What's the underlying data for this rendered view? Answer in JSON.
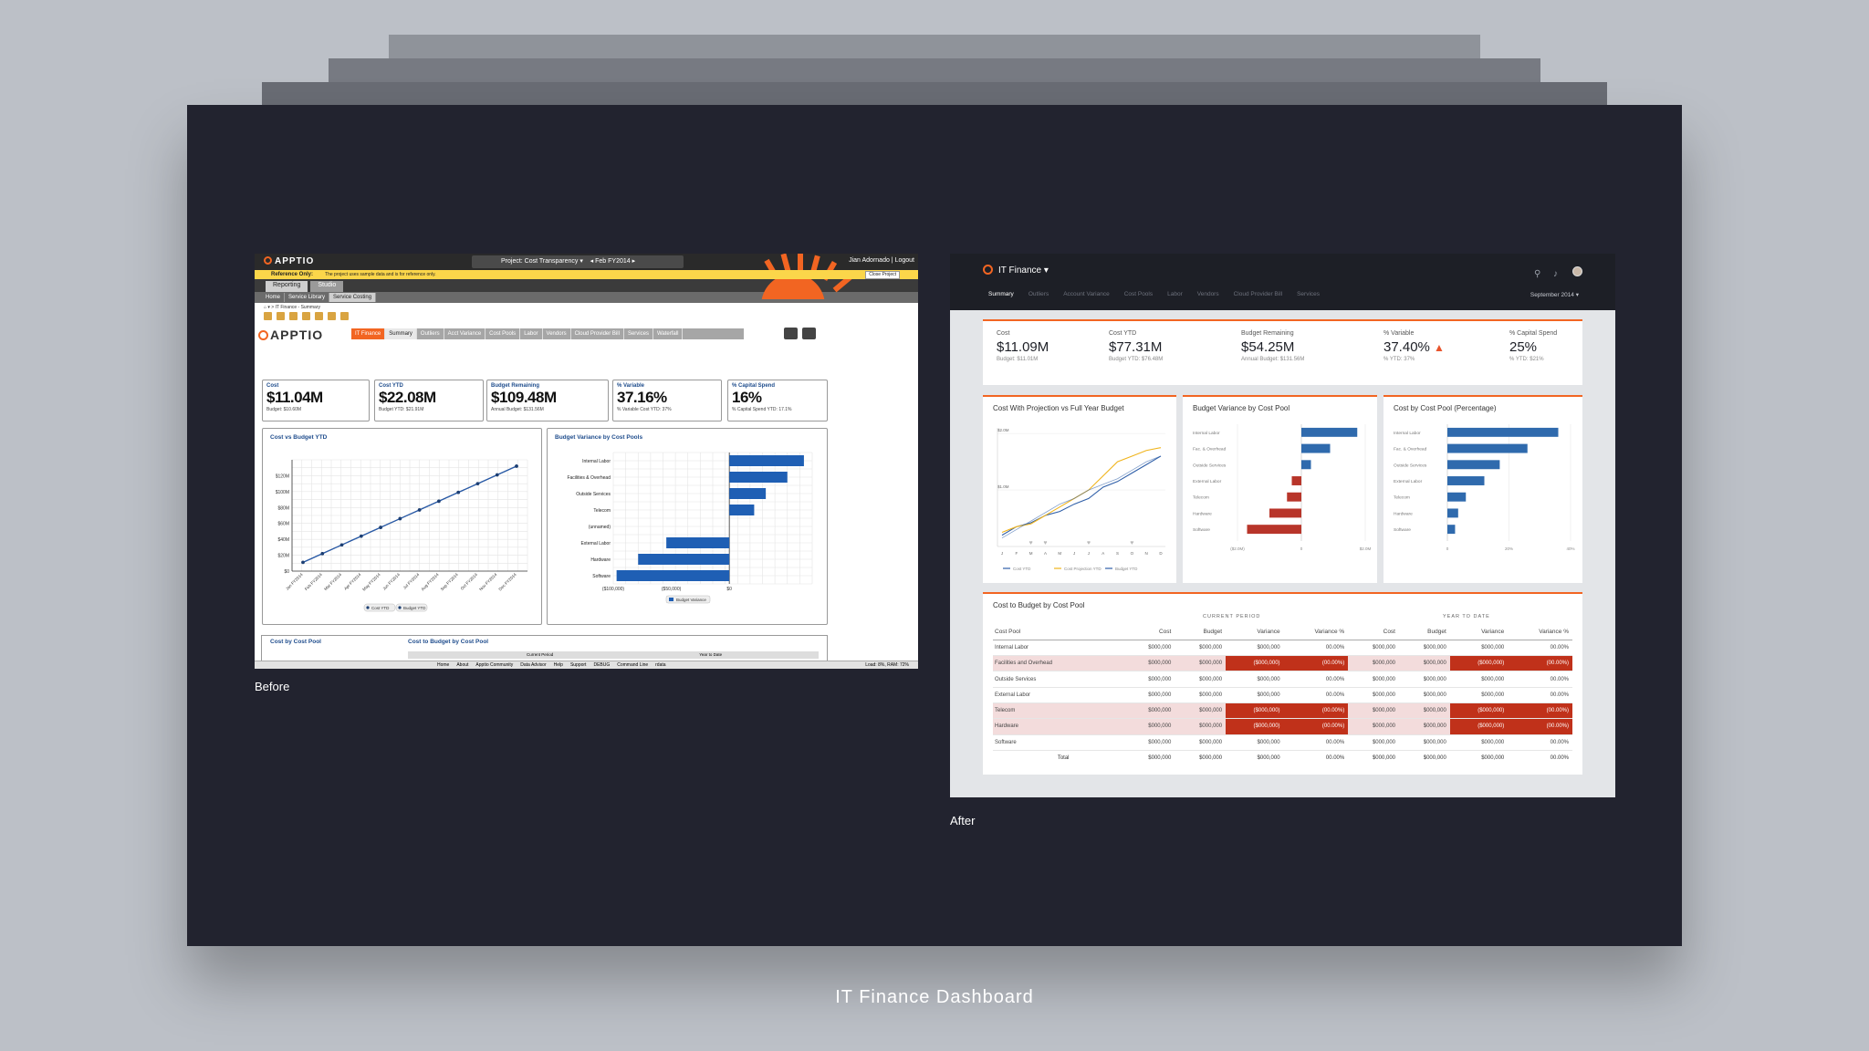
{
  "page": {
    "title": "IT Finance Dashboard",
    "before_label": "Before",
    "after_label": "After"
  },
  "before": {
    "brand": "APPTIO",
    "project": "Project: Cost Transparency",
    "period": "Feb FY2014",
    "user": "Jian Adornado",
    "logout": "Logout",
    "reference_label": "Reference Only:",
    "reference_text": "The project uses sample data and is for reference only.",
    "close_project": "Close Project",
    "tabs": [
      "Reporting",
      "Studio"
    ],
    "subtabs": [
      "Home",
      "Service Library",
      "Service Costing"
    ],
    "breadcrumb": "IT Finance - Summary",
    "nav": [
      "IT Finance",
      "Summary",
      "Outliers",
      "Acct Variance",
      "Cost Pools",
      "Labor",
      "Vendors",
      "Cloud Provider Bill",
      "Services",
      "Waterfall"
    ],
    "kpis": [
      {
        "label": "Cost",
        "value": "$11.04M",
        "sub": "Budget: $10.60M"
      },
      {
        "label": "Cost YTD",
        "value": "$22.08M",
        "sub": "Budget YTD: $21.91M"
      },
      {
        "label": "Budget Remaining",
        "value": "$109.48M",
        "sub": "Annual Budget: $131.56M"
      },
      {
        "label": "% Variable",
        "value": "37.16%",
        "sub": "% Variable Cost YTD: 37%"
      },
      {
        "label": "% Capital Spend",
        "value": "16%",
        "sub": "% Capital Spend YTD: 17.1%"
      }
    ],
    "line_title": "Cost vs Budget YTD",
    "bar_title": "Budget Variance by Cost Pools",
    "bottom_left": "Cost by Cost Pool",
    "bottom_right": "Cost to Budget by Cost Pool",
    "bottom_cols": [
      "Current Period",
      "Year to Date"
    ],
    "status_links": [
      "Home",
      "About",
      "Apptio Community",
      "Data Advisor",
      "Help",
      "Support",
      "DEBUG",
      "Command Line",
      "rdata"
    ],
    "status_right": "Load: 8%, RAM: 72%"
  },
  "after": {
    "app": "IT Finance",
    "tabs": [
      "Summary",
      "Outliers",
      "Account Variance",
      "Cost Pools",
      "Labor",
      "Vendors",
      "Cloud Provider Bill",
      "Services"
    ],
    "month": "September 2014",
    "kpis": [
      {
        "label": "Cost",
        "value": "$11.09M",
        "sub": "Budget: $11.01M"
      },
      {
        "label": "Cost YTD",
        "value": "$77.31M",
        "sub": "Budget YTD: $76.48M"
      },
      {
        "label": "Budget Remaining",
        "value": "$54.25M",
        "sub": "Annual Budget: $131.56M"
      },
      {
        "label": "% Variable",
        "value": "37.40%",
        "sub": "% YTD: 37%"
      },
      {
        "label": "% Capital Spend",
        "value": "25%",
        "sub": "% YTD: $21%"
      }
    ],
    "line_title": "Cost With Projection vs Full Year Budget",
    "var_title": "Budget Variance by Cost Pool",
    "pct_title": "Cost by Cost Pool (Percentage)",
    "table_title": "Cost to Budget by Cost Pool",
    "group_current": "CURRENT PERIOD",
    "group_ytd": "YEAR TO DATE",
    "columns": [
      "Cost Pool",
      "Cost",
      "Budget",
      "Variance",
      "Variance %",
      "Cost",
      "Budget",
      "Variance",
      "Variance %"
    ],
    "rows": [
      {
        "name": "Internal Labor",
        "v": [
          "$000,000",
          "$000,000",
          "$000,000",
          "00.00%",
          "$000,000",
          "$000,000",
          "$000,000",
          "00.00%"
        ],
        "neg": false
      },
      {
        "name": "Facilities and Overhead",
        "v": [
          "$000,000",
          "$000,000",
          "($000,000)",
          "(00.00%)",
          "$000,000",
          "$000,000",
          "($000,000)",
          "(00.00%)"
        ],
        "neg": true
      },
      {
        "name": "Outside Services",
        "v": [
          "$000,000",
          "$000,000",
          "$000,000",
          "00.00%",
          "$000,000",
          "$000,000",
          "$000,000",
          "00.00%"
        ],
        "neg": false
      },
      {
        "name": "External Labor",
        "v": [
          "$000,000",
          "$000,000",
          "$000,000",
          "00.00%",
          "$000,000",
          "$000,000",
          "$000,000",
          "00.00%"
        ],
        "neg": false
      },
      {
        "name": "Telecom",
        "v": [
          "$000,000",
          "$000,000",
          "($000,000)",
          "(00.00%)",
          "$000,000",
          "$000,000",
          "($000,000)",
          "(00.00%)"
        ],
        "neg": true
      },
      {
        "name": "Hardware",
        "v": [
          "$000,000",
          "$000,000",
          "($000,000)",
          "(00.00%)",
          "$000,000",
          "$000,000",
          "($000,000)",
          "(00.00%)"
        ],
        "neg": true
      },
      {
        "name": "Software",
        "v": [
          "$000,000",
          "$000,000",
          "$000,000",
          "00.00%",
          "$000,000",
          "$000,000",
          "$000,000",
          "00.00%"
        ],
        "neg": false
      }
    ],
    "total": {
      "name": "Total",
      "v": [
        "$000,000",
        "$000,000",
        "$000,000",
        "00.00%",
        "$000,000",
        "$000,000",
        "$000,000",
        "00.00%"
      ]
    }
  },
  "chart_data": [
    {
      "type": "line",
      "title": "Cost vs Budget YTD",
      "categories": [
        "Jan FY2014",
        "Feb FY2014",
        "Mar FY2014",
        "Apr FY2014",
        "May FY2014",
        "Jun FY2014",
        "Jul FY2014",
        "Aug FY2014",
        "Sep FY2014",
        "Oct FY2014",
        "Nov FY2014",
        "Dec FY2014"
      ],
      "series": [
        {
          "name": "Cost YTD",
          "values": [
            11,
            22,
            33,
            44,
            55,
            66,
            77,
            88,
            99,
            110,
            121,
            132
          ]
        },
        {
          "name": "Budget YTD",
          "values": [
            11,
            22,
            33,
            44,
            55,
            66,
            77,
            88,
            99,
            110,
            121,
            132
          ]
        }
      ],
      "yticks": [
        "$0",
        "$20M",
        "$40M",
        "$60M",
        "$80M",
        "$100M",
        "$120M"
      ],
      "ylim": [
        0,
        140
      ]
    },
    {
      "type": "bar",
      "title": "Budget Variance by Cost Pools",
      "orientation": "horizontal",
      "categories": [
        "Internal Labor",
        "Facilities & Overhead",
        "Outside Services",
        "Telecom",
        "(unnamed)",
        "External Labor",
        "Hardware",
        "Software"
      ],
      "series": [
        {
          "name": "Budget Variance",
          "values": [
            45,
            35,
            22,
            15,
            0,
            -38,
            -55,
            -68
          ]
        }
      ],
      "xticks": [
        "($100,000)",
        "($50,000)",
        "$0"
      ],
      "xlim": [
        -70,
        50
      ]
    },
    {
      "type": "line",
      "title": "Cost With Projection vs Full Year Budget",
      "categories": [
        "J",
        "F",
        "M",
        "A",
        "M",
        "J",
        "J",
        "A",
        "S",
        "O",
        "N",
        "D"
      ],
      "series": [
        {
          "name": "Cost YTD",
          "values": [
            0.2,
            0.35,
            0.42,
            0.55,
            0.62,
            0.75,
            0.85,
            1.05,
            1.15,
            1.3,
            1.45,
            1.6
          ]
        },
        {
          "name": "Cost Projection YTD",
          "values": [
            0.25,
            0.35,
            0.4,
            0.55,
            0.7,
            0.85,
            1.0,
            1.25,
            1.5,
            1.6,
            1.7,
            1.75
          ]
        },
        {
          "name": "Budget YTD",
          "values": [
            0.15,
            0.3,
            0.45,
            0.6,
            0.75,
            0.85,
            1.0,
            1.1,
            1.2,
            1.35,
            1.5,
            1.6
          ]
        }
      ],
      "yticks": [
        "$1.0M",
        "$2.0M"
      ],
      "ylim": [
        0,
        2.1
      ]
    },
    {
      "type": "bar",
      "title": "Budget Variance by Cost Pool",
      "orientation": "horizontal",
      "categories": [
        "Internal Labor",
        "Fac. & Overhead",
        "Outside Services",
        "External Labor",
        "Telecom",
        "Hardware",
        "Software"
      ],
      "series": [
        {
          "values": [
            1.75,
            0.9,
            0.3,
            -0.3,
            -0.45,
            -1.0,
            -1.7
          ]
        }
      ],
      "xticks": [
        "($2.0M)",
        "0",
        "$2.0M"
      ],
      "xlim": [
        -2.0,
        2.0
      ]
    },
    {
      "type": "bar",
      "title": "Cost by Cost Pool (Percentage)",
      "orientation": "horizontal",
      "categories": [
        "Internal Labor",
        "Fac. & Overhead",
        "Outside Services",
        "External Labor",
        "Telecom",
        "Hardware",
        "Software"
      ],
      "series": [
        {
          "values": [
            36,
            26,
            17,
            12,
            6,
            3.5,
            2.5
          ]
        }
      ],
      "xticks": [
        "0",
        "20%",
        "40%"
      ],
      "xlim": [
        0,
        40
      ]
    }
  ]
}
